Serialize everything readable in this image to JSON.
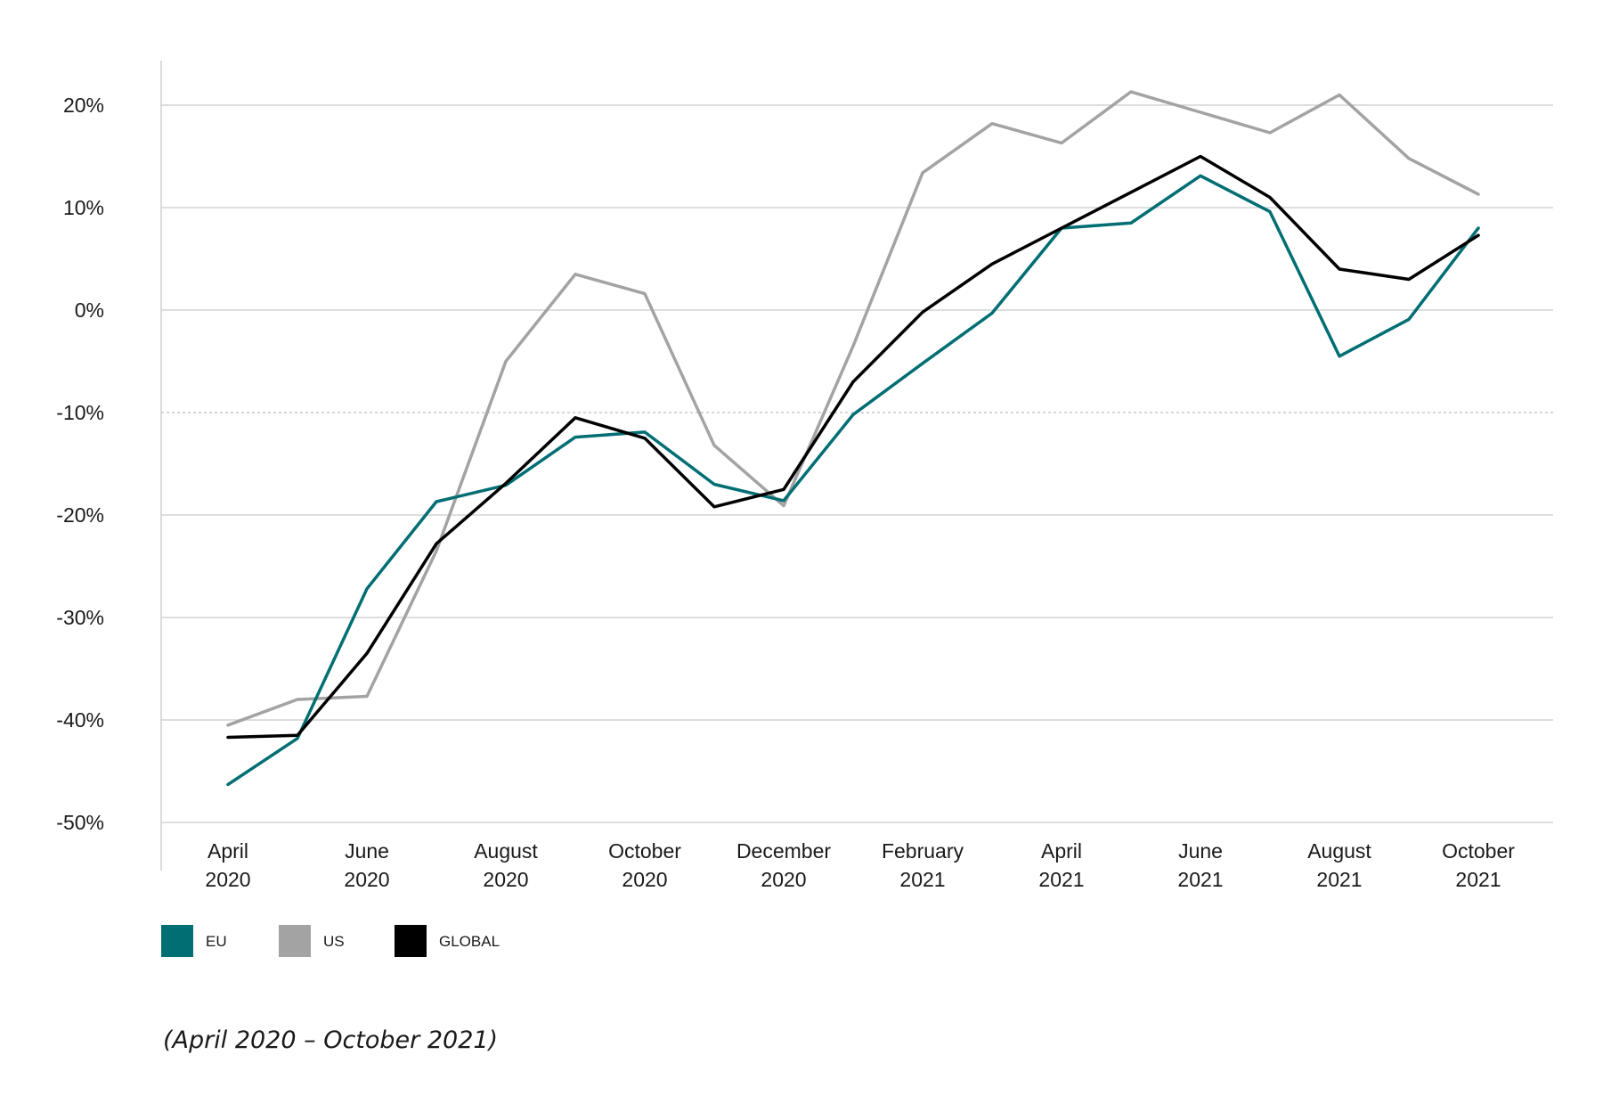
{
  "chart_data": {
    "type": "line",
    "x": [
      "April 2020",
      "May 2020",
      "June 2020",
      "July 2020",
      "August 2020",
      "September 2020",
      "October 2020",
      "November 2020",
      "December 2020",
      "January 2021",
      "February 2021",
      "March 2021",
      "April 2021",
      "May 2021",
      "June 2021",
      "July 2021",
      "August 2021",
      "September 2021",
      "October 2021"
    ],
    "x_tick_labels": [
      {
        "x": "April 2020",
        "line1": "April",
        "line2": "2020"
      },
      {
        "x": "June 2020",
        "line1": "June",
        "line2": "2020"
      },
      {
        "x": "August 2020",
        "line1": "August",
        "line2": "2020"
      },
      {
        "x": "October 2020",
        "line1": "October",
        "line2": "2020"
      },
      {
        "x": "December 2020",
        "line1": "December",
        "line2": "2020"
      },
      {
        "x": "February 2021",
        "line1": "February",
        "line2": "2021"
      },
      {
        "x": "April 2021",
        "line1": "April",
        "line2": "2021"
      },
      {
        "x": "June 2021",
        "line1": "June",
        "line2": "2021"
      },
      {
        "x": "August 2021",
        "line1": "August",
        "line2": "2021"
      },
      {
        "x": "October 2021",
        "line1": "October",
        "line2": "2021"
      }
    ],
    "y_ticks": [
      20,
      10,
      0,
      -10,
      -20,
      -30,
      -40,
      -50
    ],
    "y_tick_labels": [
      "20%",
      "10%",
      "0%",
      "-10%",
      "-20%",
      "-30%",
      "-40%",
      "-50%"
    ],
    "ylim": [
      -50,
      24
    ],
    "grid": true,
    "dashed_gridline": -10,
    "series": [
      {
        "name": "US",
        "color": "#a3a3a3",
        "values": [
          -40.5,
          -38.0,
          -37.7,
          -23.5,
          -5.0,
          3.5,
          1.6,
          -13.2,
          -19.1,
          -3.5,
          13.4,
          18.2,
          16.3,
          21.3,
          19.3,
          17.3,
          21.0,
          14.8,
          11.3
        ]
      },
      {
        "name": "EU",
        "color": "#006e73",
        "values": [
          -46.3,
          -41.8,
          -27.2,
          -18.7,
          -17.1,
          -12.4,
          -11.9,
          -17.0,
          -18.6,
          -10.2,
          -5.2,
          -0.3,
          8.0,
          8.5,
          13.1,
          9.6,
          -4.5,
          -0.9,
          8.0
        ]
      },
      {
        "name": "GLOBAL",
        "color": "#000000",
        "values": [
          -41.7,
          -41.5,
          -33.5,
          -22.8,
          -16.9,
          -10.5,
          -12.5,
          -19.2,
          -17.5,
          -7.0,
          -0.2,
          4.5,
          8.0,
          11.5,
          15.0,
          11.0,
          4.0,
          3.0,
          7.3
        ]
      }
    ],
    "legend": {
      "placement": "bottom-left",
      "entries": [
        {
          "name": "EU",
          "color": "#006e73"
        },
        {
          "name": "US",
          "color": "#a3a3a3"
        },
        {
          "name": "GLOBAL",
          "color": "#000000"
        }
      ]
    },
    "caption": "(April 2020 – October 2021)",
    "title": "",
    "xlabel": "",
    "ylabel": ""
  }
}
